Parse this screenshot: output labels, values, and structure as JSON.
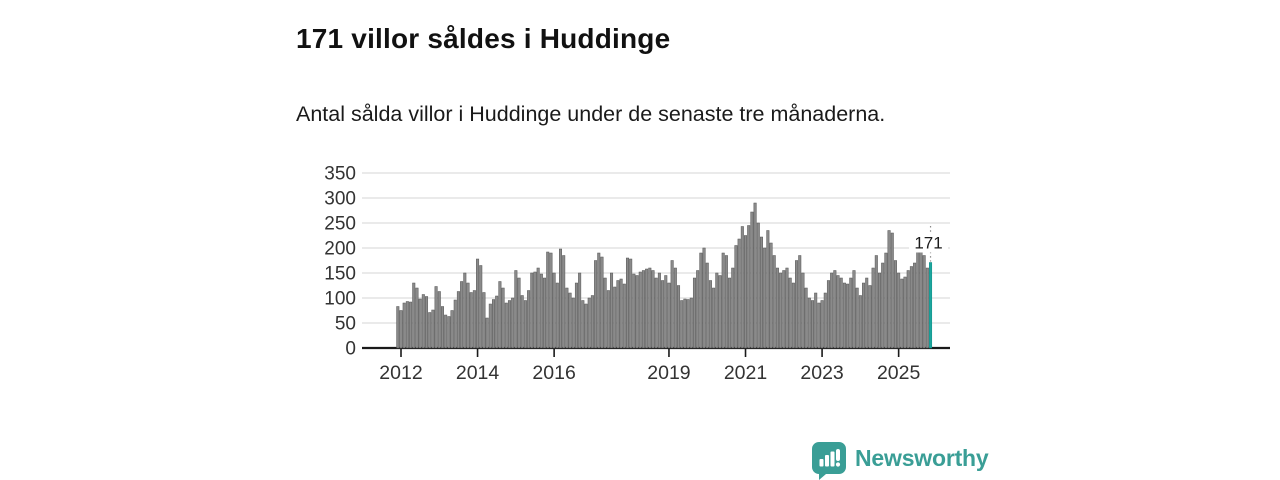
{
  "header": {
    "title": "171 villor såldes i Huddinge",
    "subtitle": "Antal sålda villor i Huddinge under de senaste tre månaderna."
  },
  "branding": {
    "name": "Newsworthy",
    "logo_icon": "bar-chart-speech-bubble-icon"
  },
  "colors": {
    "bar": "#8a8a8a",
    "bar_stroke": "#555555",
    "highlight": "#1ba69e",
    "highlight_stroke": "#0e8c86",
    "grid": "#dddddd",
    "axis": "#1a1a1a",
    "tick_text": "#333333",
    "annotation_text": "#1a1a1a",
    "brand": "#3a9e96"
  },
  "chart_data": {
    "type": "bar",
    "title": "171 villor såldes i Huddinge",
    "subtitle": "Antal sålda villor i Huddinge under de senaste tre månaderna.",
    "unit": "antal sålda villor per tre månader",
    "x_start": "2011-12",
    "x_end": "2025-11",
    "n_months": 168,
    "grid": true,
    "ylim": [
      0,
      350
    ],
    "y_ticks": [
      0,
      50,
      100,
      150,
      200,
      250,
      300,
      350
    ],
    "x_tick_labels": [
      "2012",
      "2014",
      "2016",
      "2019",
      "2021",
      "2023",
      "2025"
    ],
    "x_tick_indices": [
      1,
      25,
      49,
      85,
      109,
      133,
      157
    ],
    "highlight_index": 167,
    "annotation": {
      "text": "171",
      "index": 167,
      "value": 171
    },
    "values": [
      83,
      75,
      90,
      93,
      92,
      130,
      120,
      98,
      107,
      103,
      71,
      76,
      123,
      113,
      83,
      66,
      63,
      75,
      96,
      113,
      133,
      150,
      130,
      111,
      115,
      178,
      165,
      111,
      60,
      88,
      97,
      104,
      133,
      120,
      90,
      95,
      100,
      155,
      140,
      105,
      95,
      115,
      150,
      152,
      160,
      148,
      140,
      192,
      190,
      150,
      130,
      198,
      185,
      120,
      110,
      100,
      130,
      150,
      95,
      88,
      100,
      105,
      175,
      190,
      182,
      140,
      115,
      150,
      122,
      135,
      138,
      128,
      180,
      178,
      148,
      145,
      152,
      155,
      158,
      160,
      155,
      140,
      150,
      135,
      145,
      130,
      175,
      160,
      125,
      95,
      98,
      97,
      100,
      140,
      155,
      190,
      200,
      170,
      135,
      120,
      150,
      145,
      190,
      185,
      140,
      160,
      205,
      218,
      243,
      225,
      245,
      272,
      290,
      250,
      222,
      200,
      235,
      210,
      185,
      160,
      150,
      155,
      160,
      140,
      130,
      175,
      185,
      150,
      120,
      100,
      95,
      110,
      90,
      95,
      110,
      135,
      150,
      155,
      145,
      140,
      130,
      128,
      140,
      155,
      120,
      105,
      130,
      140,
      125,
      160,
      185,
      150,
      170,
      190,
      235,
      230,
      175,
      150,
      138,
      142,
      155,
      163,
      170,
      205,
      195,
      185,
      160,
      171
    ]
  }
}
